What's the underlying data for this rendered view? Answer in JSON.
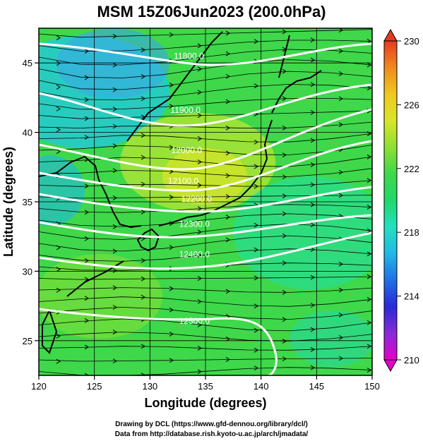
{
  "title": "MSM 15Z06Jun2023 (200.0hPa)",
  "footer_line1": "Drawing by DCL (https://www.gfd-dennou.org/library/dcl/)",
  "footer_line2": "Data from http://database.rish.kyoto-u.ac.jp/arch/jmadata/",
  "map": {
    "xlabel": "Longitude (degrees)",
    "ylabel": "Latitude (degrees)",
    "xlim": [
      120,
      150
    ],
    "ylim": [
      22.5,
      47.5
    ],
    "xticks": [
      "120",
      "125",
      "130",
      "135",
      "140",
      "145",
      "150"
    ],
    "yticks": [
      "25",
      "30",
      "35",
      "40",
      "45"
    ],
    "xtick_values": [
      120,
      125,
      130,
      135,
      140,
      145,
      150
    ],
    "ytick_values": [
      25,
      30,
      35,
      40,
      45
    ]
  },
  "colorbar": {
    "min": 210,
    "max": 230,
    "ticks": [
      "210",
      "214",
      "218",
      "222",
      "226",
      "230"
    ],
    "tick_values": [
      210,
      214,
      218,
      222,
      226,
      230
    ],
    "colors": [
      "#e600c8",
      "#8a2ad8",
      "#2a2ad8",
      "#1f6fe6",
      "#22b8e6",
      "#22e0c0",
      "#22d86a",
      "#3ed84a",
      "#8ee032",
      "#d8e628",
      "#f0c81e",
      "#f08a1e",
      "#e63a1e"
    ]
  },
  "contours": [
    {
      "label": "11800.0",
      "lon": 133.5,
      "lat": 45.3
    },
    {
      "label": "11900.0",
      "lon": 133.2,
      "lat": 41.4
    },
    {
      "label": "12000.0",
      "lon": 133.3,
      "lat": 38.5
    },
    {
      "label": "12100.0",
      "lon": 133.0,
      "lat": 36.3
    },
    {
      "label": "12200.0",
      "lon": 134.2,
      "lat": 35.0
    },
    {
      "label": "12300.0",
      "lon": 134.0,
      "lat": 33.2
    },
    {
      "label": "12400.0",
      "lon": 134.0,
      "lat": 31.0
    },
    {
      "label": "12500.0",
      "lon": 134.0,
      "lat": 26.2
    }
  ]
}
